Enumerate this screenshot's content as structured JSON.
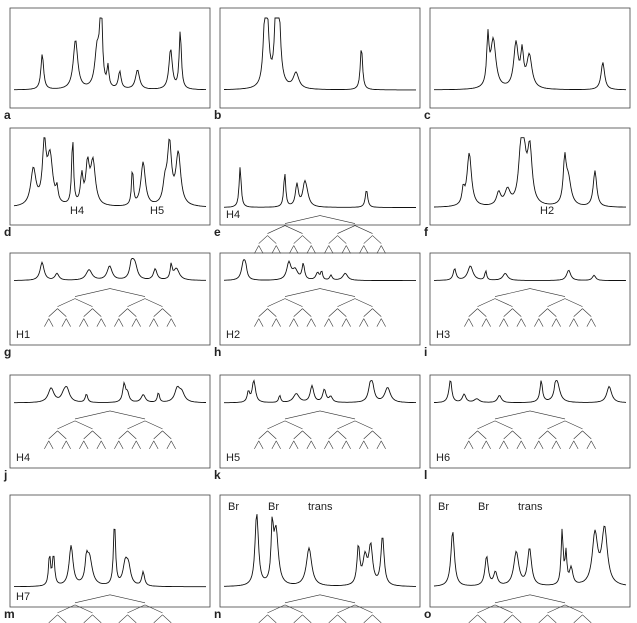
{
  "panels": [
    {
      "letter": "a"
    },
    {
      "letter": "b"
    },
    {
      "letter": "c"
    },
    {
      "letter": "d",
      "labels": [
        "H4",
        "H5"
      ]
    },
    {
      "letter": "e",
      "labels": [
        "H4"
      ]
    },
    {
      "letter": "f",
      "labels": [
        "H2"
      ]
    },
    {
      "letter": "g",
      "labels": [
        "H1"
      ]
    },
    {
      "letter": "h",
      "labels": [
        "H2"
      ]
    },
    {
      "letter": "i",
      "labels": [
        "H3"
      ]
    },
    {
      "letter": "j",
      "labels": [
        "H4"
      ]
    },
    {
      "letter": "k",
      "labels": [
        "H5"
      ]
    },
    {
      "letter": "l",
      "labels": [
        "H6"
      ]
    },
    {
      "letter": "m",
      "labels": [
        "H7"
      ]
    },
    {
      "letter": "n",
      "labels": [
        "Br",
        "Br",
        "trans"
      ]
    },
    {
      "letter": "o",
      "labels": [
        "Br",
        "Br",
        "trans"
      ]
    }
  ]
}
